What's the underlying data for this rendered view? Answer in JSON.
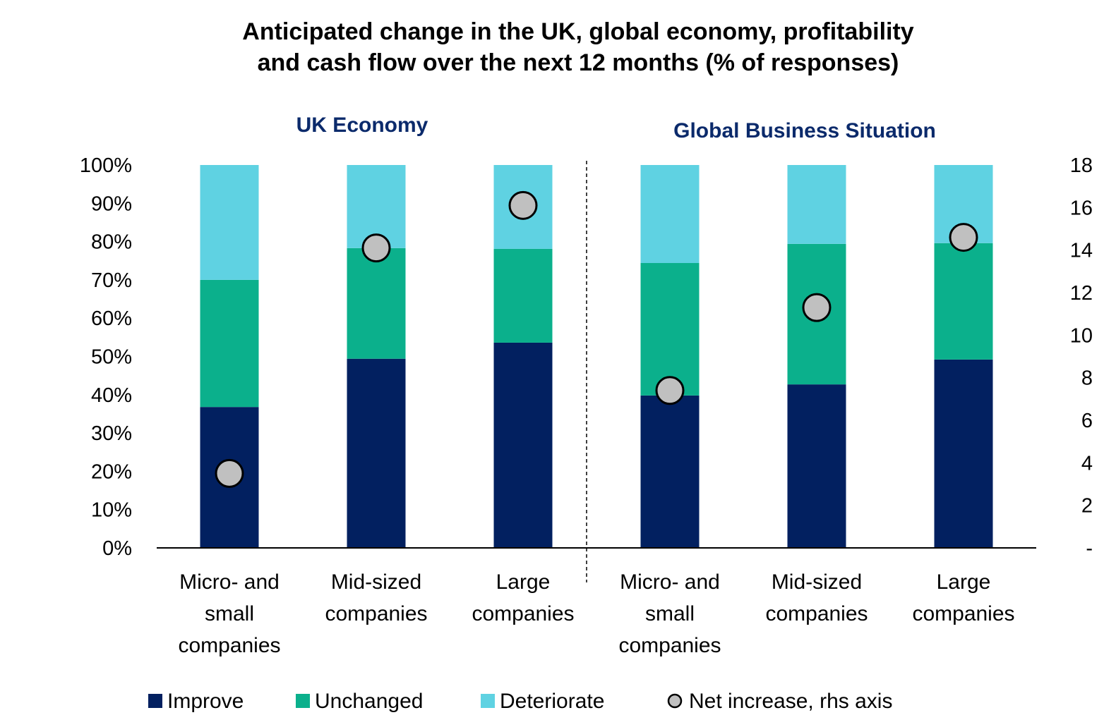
{
  "chart_data": {
    "type": "bar",
    "stacked": true,
    "title_lines": [
      "Anticipated change in the UK, global economy, profitability",
      "and cash flow over the next 12 months (% of responses)"
    ],
    "panels": [
      {
        "title": "UK Economy",
        "category_indices": [
          0,
          1,
          2
        ]
      },
      {
        "title": "Global Business Situation",
        "category_indices": [
          3,
          4,
          5
        ]
      }
    ],
    "categories": [
      {
        "lines": [
          "Micro- and",
          "small",
          "companies"
        ]
      },
      {
        "lines": [
          "Mid-sized",
          "companies"
        ]
      },
      {
        "lines": [
          "Large",
          "companies"
        ]
      },
      {
        "lines": [
          "Micro- and",
          "small",
          "companies"
        ]
      },
      {
        "lines": [
          "Mid-sized",
          "companies"
        ]
      },
      {
        "lines": [
          "Large",
          "companies"
        ]
      }
    ],
    "series": [
      {
        "name": "Improve",
        "color": "#022060",
        "axis": "left",
        "values": [
          36.8,
          49.4,
          53.6,
          39.8,
          42.7,
          49.2
        ]
      },
      {
        "name": "Unchanged",
        "color": "#0bb08c",
        "axis": "left",
        "values": [
          33.2,
          28.9,
          24.5,
          34.6,
          36.7,
          30.4
        ]
      },
      {
        "name": "Deteriorate",
        "color": "#5fd2e2",
        "axis": "left",
        "values": [
          30.0,
          21.7,
          21.9,
          25.6,
          20.6,
          20.4
        ]
      },
      {
        "name": "Net increase, rhs axis",
        "type": "scatter",
        "color": "#c0c0c0",
        "axis": "right",
        "values": [
          3.5,
          14.1,
          16.1,
          7.4,
          11.3,
          14.6
        ]
      }
    ],
    "y_left": {
      "range": [
        0,
        100
      ],
      "ticks": [
        "0%",
        "10%",
        "20%",
        "30%",
        "40%",
        "50%",
        "60%",
        "70%",
        "80%",
        "90%",
        "100%"
      ]
    },
    "y_right": {
      "range": [
        0,
        18
      ],
      "ticks": [
        "-",
        "2",
        "4",
        "6",
        "8",
        "10",
        "12",
        "14",
        "16",
        "18"
      ]
    },
    "grid": false,
    "legend_position": "bottom"
  }
}
